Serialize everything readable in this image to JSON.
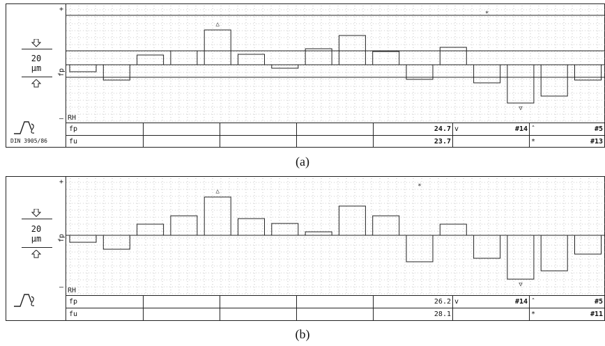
{
  "scale_value": "20",
  "scale_unit": "µm",
  "fp_axis_label": "fp",
  "plus": "+",
  "minus": "–",
  "rh_label": "RH",
  "din_label": "DIN 3905/86",
  "colors": {
    "line": "#222222",
    "grid": "#9a9a9a"
  },
  "icons": {
    "up": "arrow-up-icon",
    "down": "arrow-down-icon",
    "profile": "profile-tool-icon"
  },
  "chart_data": [
    {
      "type": "bar",
      "title": "",
      "xlabel": "",
      "ylabel": "fp",
      "series": [
        {
          "values": [
            -10,
            -22,
            14,
            20,
            50,
            15,
            -5,
            23,
            42,
            19,
            -21,
            25,
            -26,
            -55,
            -45,
            -22
          ]
        }
      ],
      "markers": [
        {
          "symbol": "△",
          "index": 4,
          "meaning": "max"
        },
        {
          "symbol": "▽",
          "index": 13,
          "meaning": "min"
        },
        {
          "symbol": "*",
          "index": 12,
          "meaning": "star"
        }
      ],
      "table": {
        "rows": [
          {
            "label": "fp",
            "value": "24.7",
            "mark": "v",
            "ref": "#14",
            "mark2": "ˆ",
            "ref2": "#5"
          },
          {
            "label": "fu",
            "value": "23.7",
            "mark": "",
            "ref": "",
            "mark2": "*",
            "ref2": "#13"
          }
        ]
      },
      "caption": "(a)"
    },
    {
      "type": "bar",
      "title": "",
      "xlabel": "",
      "ylabel": "fp",
      "series": [
        {
          "values": [
            -10,
            -20,
            16,
            28,
            55,
            24,
            17,
            5,
            42,
            28,
            -38,
            16,
            -33,
            -63,
            -51,
            -27
          ]
        }
      ],
      "markers": [
        {
          "symbol": "△",
          "index": 4,
          "meaning": "max"
        },
        {
          "symbol": "▽",
          "index": 13,
          "meaning": "min"
        },
        {
          "symbol": "*",
          "index": 10,
          "meaning": "star"
        }
      ],
      "table": {
        "rows": [
          {
            "label": "fp",
            "value": "26.2",
            "mark": "v",
            "ref": "#14",
            "mark2": "ˆ",
            "ref2": "#5"
          },
          {
            "label": "fu",
            "value": "28.1",
            "mark": "",
            "ref": "",
            "mark2": "*",
            "ref2": "#11"
          }
        ]
      },
      "caption": "(b)"
    }
  ]
}
